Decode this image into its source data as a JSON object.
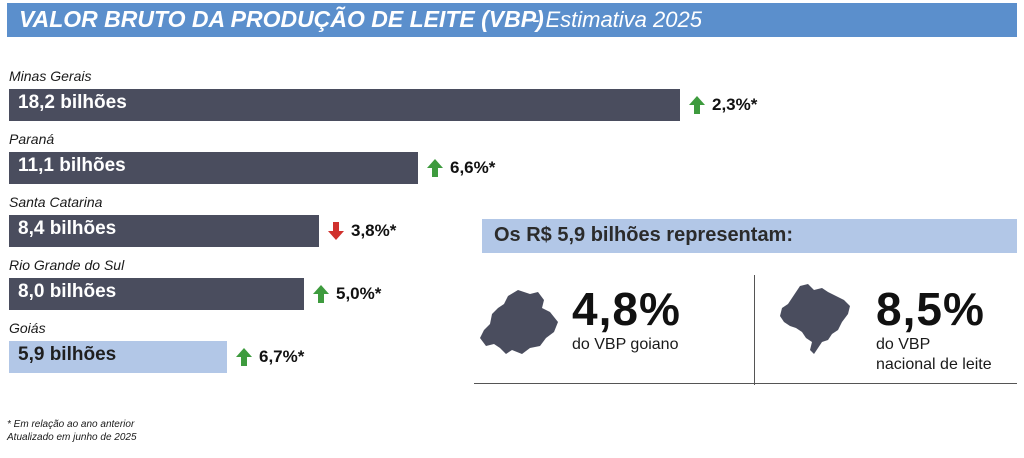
{
  "header": {
    "title": "VALOR BRUTO DA PRODUÇÃO DE LEITE (VBP)",
    "subtitle": "- Estimativa 2025"
  },
  "chart_data": {
    "type": "bar",
    "orientation": "horizontal",
    "categories": [
      "Minas Gerais",
      "Paraná",
      "Santa Catarina",
      "Rio Grande do Sul",
      "Goiás"
    ],
    "values": [
      18.2,
      11.1,
      8.4,
      8.0,
      5.9
    ],
    "value_labels": [
      "18,2 bilhões",
      "11,1 bilhões",
      "8,4 bilhões",
      "8,0 bilhões",
      "5,9 bilhões"
    ],
    "changes": [
      {
        "label": "2,3%*",
        "direction": "up"
      },
      {
        "label": "6,6%*",
        "direction": "up"
      },
      {
        "label": "3,8%*",
        "direction": "down"
      },
      {
        "label": "5,0%*",
        "direction": "up"
      },
      {
        "label": "6,7%*",
        "direction": "up"
      }
    ],
    "colors": {
      "bar": "#4a4d5e",
      "highlight_bar": "#b2c7e7",
      "bar_text": "#ffffff",
      "highlight_text": "#1f1f1f",
      "up_arrow": "#3e9b3e",
      "down_arrow": "#d0312d"
    },
    "highlight_index": 4,
    "grid": false,
    "legend": "none"
  },
  "representation": {
    "heading": "Os R$ 5,9 bilhões representam:",
    "stats": [
      {
        "value": "4,8%",
        "label_lines": [
          "do VBP goiano"
        ],
        "icon": "goias-map-icon"
      },
      {
        "value": "8,5%",
        "label_lines": [
          "do VBP",
          "nacional de leite"
        ],
        "icon": "brazil-map-icon"
      }
    ]
  },
  "footnotes": [
    "* Em relação ao ano anterior",
    "Atualizado em junho de 2025"
  ],
  "colors": {
    "title_bar": "#5b8fcc",
    "map_fill": "#4a4d5e"
  }
}
